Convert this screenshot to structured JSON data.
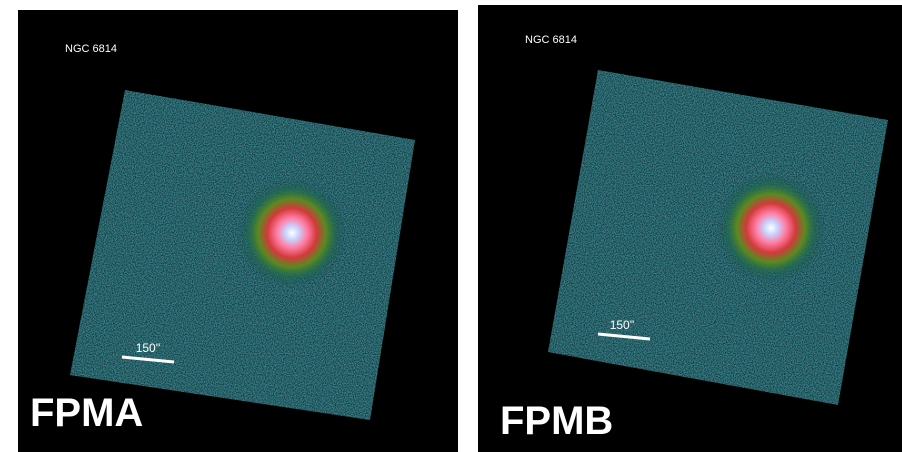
{
  "panels": [
    {
      "object": "NGC 6814",
      "scale_label": "150''",
      "detector": "FPMA"
    },
    {
      "object": "NGC 6814",
      "scale_label": "150''",
      "detector": "FPMB"
    }
  ]
}
